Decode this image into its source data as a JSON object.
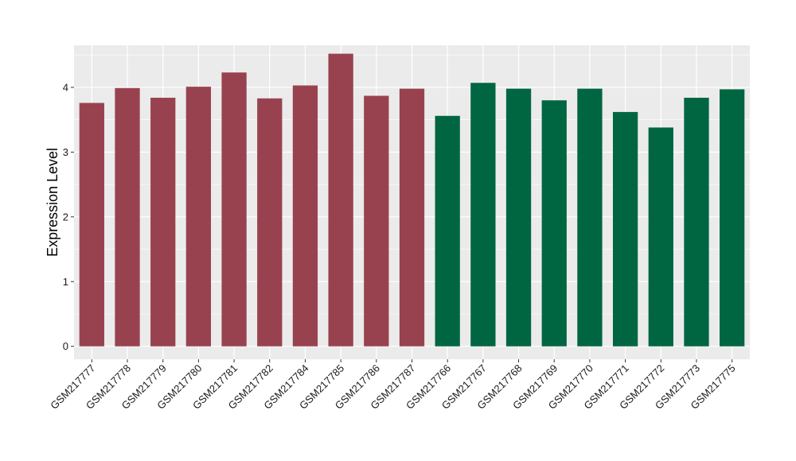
{
  "chart_data": {
    "type": "bar",
    "title": "",
    "xlabel": "",
    "ylabel": "Expression Level",
    "ylim": [
      -0.2,
      4.65
    ],
    "yticks": [
      0,
      1,
      2,
      3,
      4
    ],
    "grid": true,
    "legend": "none",
    "background_color": "#EBEBEB",
    "categories": [
      "GSM217777",
      "GSM217778",
      "GSM217779",
      "GSM217780",
      "GSM217781",
      "GSM217782",
      "GSM217784",
      "GSM217785",
      "GSM217786",
      "GSM217787",
      "GSM217766",
      "GSM217767",
      "GSM217768",
      "GSM217769",
      "GSM217770",
      "GSM217771",
      "GSM217772",
      "GSM217773",
      "GSM217775"
    ],
    "values": [
      3.76,
      3.99,
      3.84,
      4.01,
      4.23,
      3.83,
      4.03,
      4.52,
      3.87,
      3.98,
      3.56,
      4.07,
      3.98,
      3.8,
      3.98,
      3.62,
      3.38,
      3.84,
      3.97
    ],
    "bar_colors": [
      "#99424F",
      "#99424F",
      "#99424F",
      "#99424F",
      "#99424F",
      "#99424F",
      "#99424F",
      "#99424F",
      "#99424F",
      "#99424F",
      "#006642",
      "#006642",
      "#006642",
      "#006642",
      "#006642",
      "#006642",
      "#006642",
      "#006642",
      "#006642"
    ]
  }
}
